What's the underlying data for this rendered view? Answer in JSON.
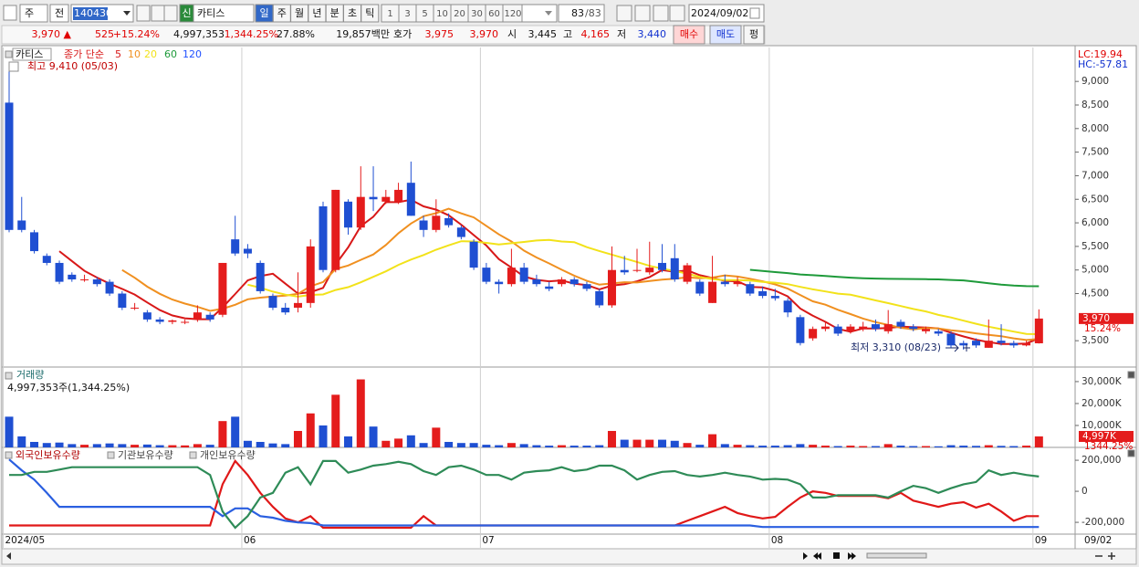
{
  "toolbar": {
    "type_select": "주",
    "prev": "전",
    "code": "140430",
    "badge": "신",
    "name": "카티스",
    "periods": [
      "일",
      "주",
      "월",
      "년",
      "분",
      "초",
      "틱"
    ],
    "intervals": [
      "1",
      "3",
      "5",
      "10",
      "20",
      "30",
      "60",
      "120"
    ],
    "count": "83",
    "total": "/83",
    "date": "2024/09/02"
  },
  "quote": {
    "price": "3,970 ▲",
    "change": "525",
    "rate": "+15.24%",
    "volume": "4,997,353",
    "volume_rate": "1,344.25%",
    "turnover": "27.88%",
    "amount": "19,857백만",
    "bid_ask_label": "호가",
    "ask": "3,975",
    "bid": "3,970",
    "open_label": "시",
    "open": "3,445",
    "high_label": "고",
    "high": "4,165",
    "low_label": "저",
    "low": "3,440",
    "buy": "매수",
    "sell": "매도",
    "flat": "펑"
  },
  "chart_data": [
    {
      "type": "candlestick",
      "title": "카티스",
      "ma_label": "종가 단순",
      "ma_periods": [
        5,
        10,
        20,
        60,
        120
      ],
      "ma_colors": [
        "#d81818",
        "#f09020",
        "#f2e21a",
        "#1e9a3a",
        "#2050ff"
      ],
      "up_color": "#e41c1c",
      "down_color": "#1f4fd2",
      "annotations": {
        "high": "최고 9,410 (05/03)",
        "low": "최저 3,310 (08/23)",
        "lc": "LC:19.94",
        "hc": "HC:-57.81"
      },
      "last_label": "3,970",
      "last_rate": "15.24%",
      "last_date": "09/02",
      "categories": [
        "2024/05",
        null,
        null,
        null,
        null,
        null,
        null,
        null,
        null,
        null,
        null,
        null,
        null,
        null,
        null,
        null,
        null,
        null,
        null,
        "06",
        null,
        null,
        null,
        null,
        null,
        null,
        null,
        null,
        null,
        null,
        null,
        null,
        null,
        null,
        null,
        null,
        null,
        null,
        "07",
        null,
        null,
        null,
        null,
        null,
        null,
        null,
        null,
        null,
        null,
        null,
        null,
        null,
        null,
        null,
        null,
        null,
        null,
        null,
        null,
        null,
        null,
        "08",
        null,
        null,
        null,
        null,
        null,
        null,
        null,
        null,
        null,
        null,
        null,
        null,
        null,
        null,
        null,
        null,
        null,
        null,
        null,
        null,
        "09"
      ],
      "candles": [
        [
          8550,
          9410,
          5800,
          5850
        ],
        [
          6050,
          6550,
          5800,
          5850
        ],
        [
          5800,
          5850,
          5350,
          5400
        ],
        [
          5300,
          5350,
          5100,
          5150
        ],
        [
          5150,
          5200,
          4700,
          4750
        ],
        [
          4900,
          4950,
          4750,
          4800
        ],
        [
          4800,
          4900,
          4750,
          4800
        ],
        [
          4800,
          4850,
          4650,
          4700
        ],
        [
          4750,
          4800,
          4450,
          4500
        ],
        [
          4500,
          4550,
          4150,
          4200
        ],
        [
          4200,
          4300,
          4150,
          4200
        ],
        [
          4100,
          4150,
          3900,
          3950
        ],
        [
          3950,
          4000,
          3850,
          3900
        ],
        [
          3900,
          3950,
          3850,
          3930
        ],
        [
          3900,
          3950,
          3850,
          3900
        ],
        [
          3950,
          4250,
          3900,
          4100
        ],
        [
          4050,
          4100,
          3900,
          3950
        ],
        [
          4050,
          5150,
          4000,
          5150
        ],
        [
          5650,
          6150,
          5300,
          5350
        ],
        [
          5450,
          5550,
          5250,
          5350
        ],
        [
          5150,
          5200,
          4500,
          4550
        ],
        [
          4450,
          4500,
          4150,
          4200
        ],
        [
          4200,
          4300,
          4050,
          4100
        ],
        [
          4200,
          4950,
          4100,
          4300
        ],
        [
          4300,
          5650,
          4200,
          5500
        ],
        [
          6350,
          6450,
          4950,
          5000
        ],
        [
          5000,
          6700,
          4950,
          6700
        ],
        [
          6450,
          6500,
          5750,
          5900
        ],
        [
          5900,
          7200,
          5850,
          6550
        ],
        [
          6550,
          7200,
          6250,
          6500
        ],
        [
          6450,
          6700,
          6400,
          6550
        ],
        [
          6450,
          6850,
          6400,
          6700
        ],
        [
          6850,
          7300,
          6150,
          6150
        ],
        [
          6050,
          6150,
          5700,
          5850
        ],
        [
          5850,
          6500,
          5800,
          6150
        ],
        [
          6100,
          6200,
          5900,
          5950
        ],
        [
          5900,
          5950,
          5650,
          5700
        ],
        [
          5600,
          5650,
          5000,
          5050
        ],
        [
          5050,
          5150,
          4700,
          4750
        ],
        [
          4750,
          4800,
          4500,
          4700
        ],
        [
          4700,
          5450,
          4650,
          5050
        ],
        [
          5050,
          5150,
          4700,
          4750
        ],
        [
          4800,
          4900,
          4650,
          4700
        ],
        [
          4650,
          4750,
          4550,
          4600
        ],
        [
          4700,
          4850,
          4650,
          4800
        ],
        [
          4800,
          4850,
          4650,
          4700
        ],
        [
          4700,
          4750,
          4550,
          4600
        ],
        [
          4550,
          4600,
          4200,
          4250
        ],
        [
          4250,
          5500,
          4200,
          5000
        ],
        [
          5000,
          5300,
          4900,
          4950
        ],
        [
          5000,
          5450,
          4950,
          5000
        ],
        [
          4950,
          5600,
          4900,
          5050
        ],
        [
          5150,
          5550,
          4950,
          5000
        ],
        [
          5250,
          5550,
          4750,
          4800
        ],
        [
          4750,
          5150,
          4700,
          5100
        ],
        [
          4750,
          4800,
          4450,
          4500
        ],
        [
          4300,
          5300,
          4300,
          4750
        ],
        [
          4750,
          4900,
          4650,
          4700
        ],
        [
          4700,
          4850,
          4650,
          4750
        ],
        [
          4700,
          4750,
          4450,
          4500
        ],
        [
          4550,
          4650,
          4400,
          4450
        ],
        [
          4450,
          4600,
          4350,
          4400
        ],
        [
          4350,
          4400,
          4000,
          4100
        ],
        [
          4000,
          4050,
          3400,
          3450
        ],
        [
          3550,
          3800,
          3500,
          3750
        ],
        [
          3750,
          3900,
          3700,
          3800
        ],
        [
          3800,
          3850,
          3600,
          3650
        ],
        [
          3700,
          3850,
          3650,
          3800
        ],
        [
          3750,
          3900,
          3700,
          3800
        ],
        [
          3850,
          3950,
          3700,
          3750
        ],
        [
          3700,
          4150,
          3650,
          3850
        ],
        [
          3900,
          3950,
          3750,
          3800
        ],
        [
          3800,
          3850,
          3700,
          3750
        ],
        [
          3700,
          3800,
          3650,
          3750
        ],
        [
          3700,
          3750,
          3600,
          3650
        ],
        [
          3650,
          3700,
          3350,
          3400
        ],
        [
          3450,
          3500,
          3310,
          3400
        ],
        [
          3500,
          3550,
          3350,
          3400
        ],
        [
          3350,
          3950,
          3350,
          3500
        ],
        [
          3500,
          3850,
          3400,
          3450
        ],
        [
          3450,
          3500,
          3350,
          3400
        ],
        [
          3400,
          3500,
          3380,
          3450
        ],
        [
          3445,
          4165,
          3440,
          3970
        ]
      ],
      "ylim": [
        2980,
        9720
      ],
      "yticks": [
        {
          "value": 3500,
          "label": "3,500"
        },
        {
          "value": 4500,
          "label": "4,500"
        },
        {
          "value": 5000,
          "label": "5,000"
        },
        {
          "value": 5500,
          "label": "5,500"
        },
        {
          "value": 6000,
          "label": "6,000"
        },
        {
          "value": 6500,
          "label": "6,500"
        },
        {
          "value": 7000,
          "label": "7,000"
        },
        {
          "value": 7500,
          "label": "7,500"
        },
        {
          "value": 8000,
          "label": "8,000"
        },
        {
          "value": 8500,
          "label": "8,500"
        },
        {
          "value": 9000,
          "label": "9,000"
        }
      ]
    },
    {
      "type": "bar",
      "title": "거래량",
      "subtitle": "4,997,353주(1,344.25%)",
      "values": [
        14000,
        5000,
        2500,
        2000,
        2200,
        1500,
        1200,
        1500,
        1800,
        1500,
        1200,
        1300,
        1000,
        1000,
        900,
        1500,
        1200,
        12000,
        14000,
        3000,
        2500,
        1800,
        1500,
        7500,
        15500,
        10000,
        24000,
        5000,
        31000,
        9500,
        3000,
        4000,
        5500,
        2000,
        9000,
        2500,
        2000,
        2000,
        1200,
        1000,
        2000,
        1500,
        1000,
        800,
        1000,
        800,
        800,
        1000,
        7500,
        3500,
        3500,
        3500,
        3500,
        3000,
        2000,
        1200,
        6000,
        1500,
        1200,
        1000,
        800,
        800,
        1000,
        1500,
        1200,
        800,
        600,
        800,
        600,
        600,
        1500,
        800,
        600,
        600,
        500,
        1000,
        800,
        700,
        1000,
        700,
        600,
        800,
        4997
      ],
      "ylim": [
        0,
        35800
      ],
      "yticks": [
        {
          "value": 10000,
          "label": "10,000K"
        },
        {
          "value": 20000,
          "label": "20,000K"
        },
        {
          "value": 30000,
          "label": "30,000K"
        }
      ],
      "last_label": "4,997K",
      "last_rate": "1344.25%"
    },
    {
      "type": "line",
      "series": [
        {
          "name": "외국인보유수량",
          "color": "#e01818",
          "values": [
            -220000,
            -220000,
            -220000,
            -220000,
            -220000,
            -220000,
            -220000,
            -220000,
            -220000,
            -220000,
            -220000,
            -220000,
            -220000,
            -220000,
            -220000,
            -220000,
            -220000,
            45000,
            195000,
            105000,
            -10000,
            -100000,
            -175000,
            -200000,
            -160000,
            -235000,
            -235000,
            -235000,
            -235000,
            -235000,
            -235000,
            -235000,
            -235000,
            -160000,
            -220000,
            -220000,
            -220000,
            -220000,
            -220000,
            -220000,
            -220000,
            -220000,
            -220000,
            -220000,
            -220000,
            -220000,
            -220000,
            -220000,
            -220000,
            -220000,
            -220000,
            -220000,
            -220000,
            -220000,
            -190000,
            -160000,
            -130000,
            -100000,
            -140000,
            -160000,
            -175000,
            -165000,
            -100000,
            -40000,
            0,
            -10000,
            -30000,
            -30000,
            -30000,
            -30000,
            -45000,
            -10000,
            -60000,
            -80000,
            -100000,
            -80000,
            -70000,
            -105000,
            -80000,
            -130000,
            -190000,
            -160000,
            -160000
          ]
        },
        {
          "name": "기관보유수량",
          "color": "#2a5fe0",
          "values": [
            205000,
            135000,
            75000,
            -10000,
            -100000,
            -100000,
            -100000,
            -100000,
            -100000,
            -100000,
            -100000,
            -100000,
            -100000,
            -100000,
            -100000,
            -100000,
            -100000,
            -160000,
            -110000,
            -110000,
            -160000,
            -170000,
            -190000,
            -200000,
            -205000,
            -220000,
            -220000,
            -220000,
            -220000,
            -220000,
            -220000,
            -220000,
            -220000,
            -220000,
            -220000,
            -220000,
            -220000,
            -220000,
            -220000,
            -220000,
            -220000,
            -220000,
            -220000,
            -220000,
            -220000,
            -220000,
            -220000,
            -220000,
            -220000,
            -220000,
            -220000,
            -220000,
            -220000,
            -220000,
            -220000,
            -220000,
            -220000,
            -220000,
            -220000,
            -220000,
            -230000,
            -230000,
            -230000,
            -230000,
            -230000,
            -230000,
            -230000,
            -230000,
            -230000,
            -230000,
            -230000,
            -230000,
            -230000,
            -230000,
            -230000,
            -230000,
            -230000,
            -230000,
            -230000,
            -230000,
            -230000,
            -230000,
            -230000
          ]
        },
        {
          "name": "개인보유수량",
          "color": "#2e8b57",
          "values": [
            105000,
            105000,
            125000,
            125000,
            140000,
            155000,
            155000,
            155000,
            155000,
            155000,
            155000,
            155000,
            155000,
            155000,
            155000,
            155000,
            105000,
            -130000,
            -235000,
            -160000,
            -40000,
            -10000,
            120000,
            155000,
            45000,
            195000,
            195000,
            120000,
            140000,
            165000,
            175000,
            190000,
            175000,
            130000,
            105000,
            155000,
            165000,
            140000,
            105000,
            105000,
            75000,
            120000,
            130000,
            135000,
            155000,
            130000,
            140000,
            165000,
            165000,
            135000,
            75000,
            105000,
            125000,
            130000,
            105000,
            95000,
            105000,
            120000,
            105000,
            95000,
            75000,
            80000,
            75000,
            45000,
            -40000,
            -40000,
            -25000,
            -25000,
            -25000,
            -25000,
            -40000,
            0,
            35000,
            20000,
            -10000,
            20000,
            45000,
            60000,
            135000,
            105000,
            120000,
            105000,
            95000
          ]
        }
      ],
      "ylim": [
        -276000,
        271000
      ],
      "yticks": [
        {
          "value": -200000,
          "label": "-200,000"
        },
        0,
        {
          "value": 200000,
          "label": "200,000"
        }
      ]
    }
  ]
}
